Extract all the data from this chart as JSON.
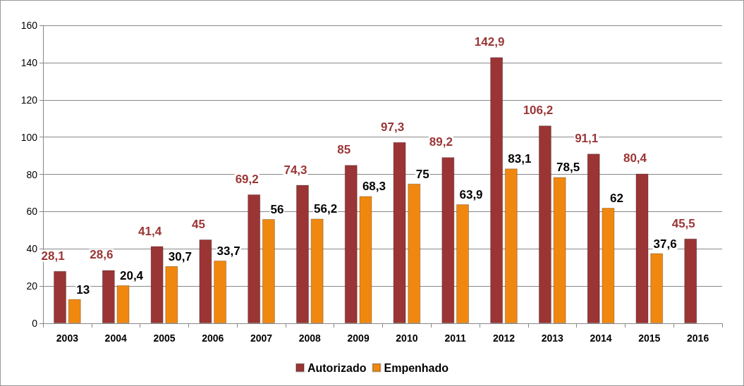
{
  "chart_data": {
    "type": "bar",
    "categories": [
      "2003",
      "2004",
      "2005",
      "2006",
      "2007",
      "2008",
      "2009",
      "2010",
      "2011",
      "2012",
      "2013",
      "2014",
      "2015",
      "2016"
    ],
    "series": [
      {
        "name": "Autorizado",
        "color": "#9b3535",
        "values": [
          28.1,
          28.6,
          41.4,
          45,
          69.2,
          74.3,
          85,
          97.3,
          89.2,
          142.9,
          106.2,
          91.1,
          80.4,
          45.5
        ],
        "value_labels": [
          "28,1",
          "28,6",
          "41,4",
          "45",
          "69,2",
          "74,3",
          "85",
          "97,3",
          "89,2",
          "142,9",
          "106,2",
          "91,1",
          "80,4",
          "45,5"
        ]
      },
      {
        "name": "Empenhado",
        "color": "#f0880f",
        "values": [
          13,
          20.4,
          30.7,
          33.7,
          56,
          56.2,
          68.3,
          75,
          63.9,
          83.1,
          78.5,
          62,
          37.6,
          null
        ],
        "value_labels": [
          "13",
          "20,4",
          "30,7",
          "33,7",
          "56",
          "56,2",
          "68,3",
          "75",
          "63,9",
          "83,1",
          "78,5",
          "62",
          "37,6",
          null
        ]
      }
    ],
    "ylim": [
      0,
      160
    ],
    "yticks": [
      0,
      20,
      40,
      60,
      80,
      100,
      120,
      140,
      160
    ],
    "grid": "y",
    "legend": "bottom"
  }
}
